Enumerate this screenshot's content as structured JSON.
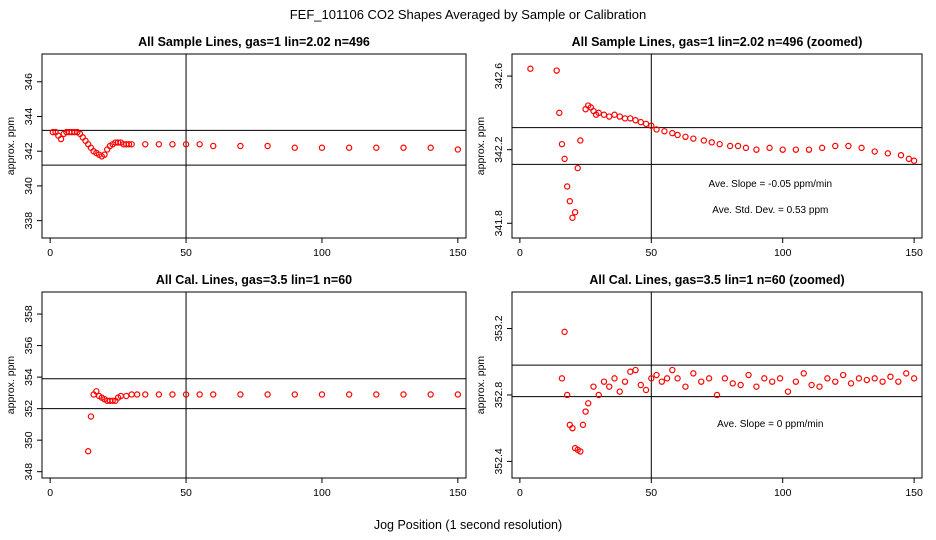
{
  "page": {
    "title": "FEF_101106  CO2 Shapes Averaged by Sample or Calibration",
    "xlabel": "Jog Position (1 second resolution)"
  },
  "colors": {
    "points": "#ff0000",
    "axes": "#000000",
    "background": "#ffffff"
  },
  "chart_data": [
    {
      "type": "scatter",
      "title": "All Sample Lines, gas=1 lin=2.02 n=496",
      "ylabel": "approx. ppm",
      "xlim": [
        -3,
        153
      ],
      "ylim": [
        337.0,
        347.6
      ],
      "xticks": [
        0,
        50,
        100,
        150
      ],
      "yticks": [
        338,
        340,
        342,
        344,
        346
      ],
      "vline": 50,
      "hlines": [
        343.2,
        341.2
      ],
      "annotations": [],
      "series": [
        {
          "marker": "open-circle",
          "x": [
            1,
            2,
            3,
            4,
            5,
            6,
            7,
            8,
            9,
            10,
            11,
            12,
            13,
            14,
            15,
            16,
            17,
            18,
            19,
            20,
            21,
            22,
            23,
            24,
            25,
            26,
            27,
            28,
            29,
            30,
            35,
            40,
            45,
            50,
            55,
            60,
            70,
            80,
            90,
            100,
            110,
            120,
            130,
            140,
            150
          ],
          "y": [
            343.1,
            343.1,
            342.9,
            342.7,
            343.0,
            343.1,
            343.1,
            343.1,
            343.1,
            343.1,
            343.0,
            342.8,
            342.6,
            342.4,
            342.2,
            342.0,
            341.9,
            341.8,
            341.7,
            341.8,
            342.1,
            342.3,
            342.4,
            342.5,
            342.5,
            342.5,
            342.4,
            342.4,
            342.4,
            342.4,
            342.4,
            342.4,
            342.4,
            342.4,
            342.4,
            342.3,
            342.3,
            342.3,
            342.2,
            342.2,
            342.2,
            342.2,
            342.2,
            342.2,
            342.1
          ]
        }
      ]
    },
    {
      "type": "scatter",
      "title": "All Sample Lines, gas=1 lin=2.02 n=496 (zoomed)",
      "ylabel": "approx. ppm",
      "xlim": [
        -3,
        153
      ],
      "ylim": [
        341.72,
        342.72
      ],
      "xticks": [
        0,
        50,
        100,
        150
      ],
      "yticks": [
        341.8,
        342.2,
        342.6
      ],
      "vline": 50,
      "hlines": [
        342.32,
        342.12
      ],
      "annotations": [
        "Ave. Slope =  -0.05  ppm/min",
        "Ave. Std. Dev. =  0.53  ppm"
      ],
      "series": [
        {
          "marker": "open-circle",
          "x": [
            4,
            14,
            15,
            16,
            17,
            18,
            19,
            20,
            21,
            22,
            23,
            25,
            26,
            27,
            28,
            29,
            30,
            32,
            34,
            36,
            38,
            40,
            42,
            44,
            46,
            48,
            50,
            52,
            55,
            58,
            60,
            63,
            66,
            70,
            73,
            76,
            80,
            83,
            86,
            90,
            95,
            100,
            105,
            110,
            115,
            120,
            125,
            130,
            135,
            140,
            145,
            148,
            150
          ],
          "y": [
            342.64,
            342.63,
            342.4,
            342.23,
            342.15,
            342.0,
            341.92,
            341.83,
            341.86,
            342.1,
            342.25,
            342.42,
            342.44,
            342.43,
            342.41,
            342.39,
            342.4,
            342.39,
            342.38,
            342.39,
            342.38,
            342.37,
            342.37,
            342.36,
            342.35,
            342.34,
            342.33,
            342.31,
            342.3,
            342.29,
            342.28,
            342.27,
            342.26,
            342.25,
            342.24,
            342.23,
            342.22,
            342.22,
            342.21,
            342.2,
            342.21,
            342.2,
            342.2,
            342.2,
            342.21,
            342.22,
            342.22,
            342.21,
            342.19,
            342.18,
            342.17,
            342.15,
            342.14
          ]
        }
      ]
    },
    {
      "type": "scatter",
      "title": "All Cal. Lines, gas=3.5 lin=1 n=60",
      "ylabel": "approx. ppm",
      "xlim": [
        -3,
        153
      ],
      "ylim": [
        347.6,
        359.4
      ],
      "xticks": [
        0,
        50,
        100,
        150
      ],
      "yticks": [
        348,
        350,
        352,
        354,
        356,
        358
      ],
      "vline": 50,
      "hlines": [
        353.9,
        352.0
      ],
      "annotations": [],
      "series": [
        {
          "marker": "open-circle",
          "x": [
            14,
            15,
            16,
            17,
            18,
            19,
            20,
            21,
            22,
            23,
            24,
            25,
            26,
            28,
            30,
            32,
            35,
            40,
            45,
            50,
            55,
            60,
            70,
            80,
            90,
            100,
            110,
            120,
            130,
            140,
            150
          ],
          "y": [
            349.3,
            351.5,
            352.9,
            353.1,
            352.8,
            352.7,
            352.6,
            352.5,
            352.5,
            352.5,
            352.5,
            352.7,
            352.8,
            352.8,
            352.9,
            352.9,
            352.9,
            352.9,
            352.9,
            352.9,
            352.9,
            352.9,
            352.9,
            352.9,
            352.9,
            352.9,
            352.9,
            352.9,
            352.9,
            352.9,
            352.9
          ]
        }
      ]
    },
    {
      "type": "scatter",
      "title": "All Cal. Lines, gas=3.5 lin=1 n=60 (zoomed)",
      "ylabel": "approx. ppm",
      "xlim": [
        -3,
        153
      ],
      "ylim": [
        352.3,
        353.42
      ],
      "xticks": [
        0,
        50,
        100,
        150
      ],
      "yticks": [
        352.4,
        352.8,
        353.2
      ],
      "vline": 50,
      "hlines": [
        352.98,
        352.79
      ],
      "annotations": [
        "Ave. Slope =  0  ppm/min"
      ],
      "series": [
        {
          "marker": "open-circle",
          "x": [
            16,
            17,
            18,
            19,
            20,
            21,
            22,
            23,
            24,
            25,
            26,
            28,
            30,
            32,
            34,
            36,
            38,
            40,
            42,
            44,
            46,
            48,
            50,
            52,
            54,
            56,
            58,
            60,
            63,
            66,
            69,
            72,
            75,
            78,
            81,
            84,
            87,
            90,
            93,
            96,
            99,
            102,
            105,
            108,
            111,
            114,
            117,
            120,
            123,
            126,
            129,
            132,
            135,
            138,
            141,
            144,
            147,
            150
          ],
          "y": [
            352.9,
            353.18,
            352.8,
            352.62,
            352.6,
            352.48,
            352.47,
            352.46,
            352.62,
            352.7,
            352.75,
            352.85,
            352.8,
            352.88,
            352.85,
            352.9,
            352.82,
            352.88,
            352.94,
            352.95,
            352.86,
            352.83,
            352.9,
            352.92,
            352.88,
            352.9,
            352.95,
            352.9,
            352.85,
            352.93,
            352.88,
            352.9,
            352.8,
            352.9,
            352.87,
            352.86,
            352.92,
            352.85,
            352.9,
            352.88,
            352.9,
            352.82,
            352.88,
            352.93,
            352.86,
            352.85,
            352.9,
            352.88,
            352.92,
            352.87,
            352.9,
            352.89,
            352.9,
            352.88,
            352.91,
            352.88,
            352.93,
            352.9
          ]
        }
      ]
    }
  ]
}
